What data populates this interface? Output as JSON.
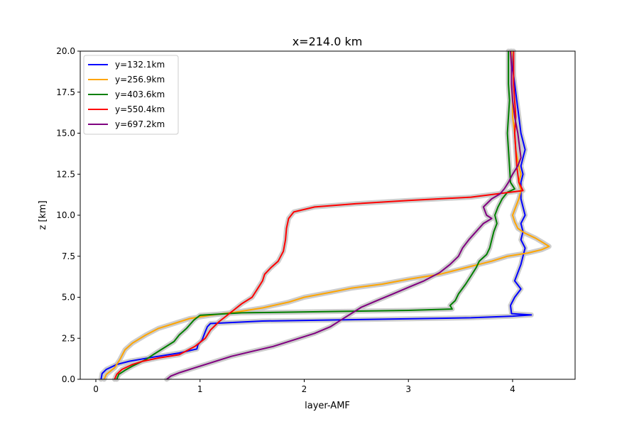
{
  "chart_data": {
    "type": "line",
    "title": "x=214.0 km",
    "xlabel": "layer-AMF",
    "ylabel": "z [km]",
    "xlim": [
      -0.15,
      4.6
    ],
    "ylim": [
      0,
      20
    ],
    "xticks": [
      0,
      1,
      2,
      3,
      4
    ],
    "yticks": [
      0.0,
      2.5,
      5.0,
      7.5,
      10.0,
      12.5,
      15.0,
      17.5,
      20.0
    ],
    "grid": false,
    "legend_position": "upper-left",
    "uncertainty_band_color": "#c8c8c8",
    "series": [
      {
        "name": "y=132.1km",
        "color": "#0000ff",
        "points": [
          [
            0.05,
            0
          ],
          [
            0.06,
            0.35
          ],
          [
            0.1,
            0.6
          ],
          [
            0.2,
            0.9
          ],
          [
            0.32,
            1.1
          ],
          [
            0.55,
            1.35
          ],
          [
            0.8,
            1.6
          ],
          [
            0.97,
            1.85
          ],
          [
            0.98,
            2.1
          ],
          [
            1.02,
            2.4
          ],
          [
            1.05,
            2.9
          ],
          [
            1.07,
            3.2
          ],
          [
            1.1,
            3.4
          ],
          [
            1.6,
            3.55
          ],
          [
            2.6,
            3.65
          ],
          [
            3.6,
            3.75
          ],
          [
            4.0,
            3.85
          ],
          [
            4.18,
            3.92
          ],
          [
            3.99,
            4.0
          ],
          [
            3.98,
            4.5
          ],
          [
            4.02,
            5.0
          ],
          [
            4.08,
            5.5
          ],
          [
            4.02,
            6.0
          ],
          [
            4.05,
            6.5
          ],
          [
            4.08,
            7.0
          ],
          [
            4.1,
            7.5
          ],
          [
            4.12,
            8.0
          ],
          [
            4.08,
            8.5
          ],
          [
            4.1,
            9.0
          ],
          [
            4.08,
            9.5
          ],
          [
            4.12,
            10.0
          ],
          [
            4.1,
            10.5
          ],
          [
            4.08,
            11.0
          ],
          [
            4.08,
            11.5
          ],
          [
            4.08,
            12.0
          ],
          [
            4.1,
            12.5
          ],
          [
            4.08,
            13.0
          ],
          [
            4.1,
            13.5
          ],
          [
            4.12,
            14.0
          ],
          [
            4.08,
            15.0
          ],
          [
            4.06,
            16.0
          ],
          [
            4.04,
            17.0
          ],
          [
            4.02,
            18.0
          ],
          [
            4.0,
            19.0
          ],
          [
            3.99,
            20.0
          ]
        ]
      },
      {
        "name": "y=256.9km",
        "color": "#ffa500",
        "points": [
          [
            0.08,
            0
          ],
          [
            0.1,
            0.3
          ],
          [
            0.18,
            0.7
          ],
          [
            0.23,
            1.2
          ],
          [
            0.28,
            1.8
          ],
          [
            0.35,
            2.2
          ],
          [
            0.48,
            2.7
          ],
          [
            0.6,
            3.1
          ],
          [
            0.75,
            3.4
          ],
          [
            0.9,
            3.7
          ],
          [
            1.1,
            3.9
          ],
          [
            1.35,
            4.1
          ],
          [
            1.6,
            4.35
          ],
          [
            1.85,
            4.7
          ],
          [
            2.0,
            5.0
          ],
          [
            2.25,
            5.3
          ],
          [
            2.45,
            5.55
          ],
          [
            2.75,
            5.8
          ],
          [
            3.0,
            6.1
          ],
          [
            3.3,
            6.4
          ],
          [
            3.55,
            6.8
          ],
          [
            3.8,
            7.2
          ],
          [
            3.95,
            7.5
          ],
          [
            4.15,
            7.7
          ],
          [
            4.28,
            7.9
          ],
          [
            4.35,
            8.1
          ],
          [
            4.3,
            8.3
          ],
          [
            4.22,
            8.6
          ],
          [
            4.12,
            8.9
          ],
          [
            4.05,
            9.2
          ],
          [
            4.02,
            9.6
          ],
          [
            4.0,
            10.0
          ],
          [
            4.03,
            10.5
          ],
          [
            4.06,
            11.0
          ],
          [
            4.08,
            11.5
          ],
          [
            4.06,
            12.0
          ],
          [
            4.08,
            12.5
          ],
          [
            4.06,
            13.0
          ],
          [
            4.03,
            14.0
          ],
          [
            4.02,
            15.0
          ],
          [
            4.0,
            16.0
          ],
          [
            4.0,
            17.0
          ],
          [
            3.99,
            18.0
          ],
          [
            3.99,
            19.0
          ],
          [
            3.99,
            20.0
          ]
        ]
      },
      {
        "name": "y=403.6km",
        "color": "#008000",
        "points": [
          [
            0.2,
            0
          ],
          [
            0.22,
            0.3
          ],
          [
            0.28,
            0.55
          ],
          [
            0.35,
            0.8
          ],
          [
            0.48,
            1.2
          ],
          [
            0.55,
            1.5
          ],
          [
            0.65,
            1.9
          ],
          [
            0.75,
            2.3
          ],
          [
            0.8,
            2.7
          ],
          [
            0.87,
            3.1
          ],
          [
            0.94,
            3.6
          ],
          [
            1.0,
            3.9
          ],
          [
            1.4,
            4.05
          ],
          [
            2.2,
            4.12
          ],
          [
            3.0,
            4.2
          ],
          [
            3.42,
            4.28
          ],
          [
            3.4,
            4.5
          ],
          [
            3.45,
            4.8
          ],
          [
            3.48,
            5.2
          ],
          [
            3.55,
            5.8
          ],
          [
            3.6,
            6.3
          ],
          [
            3.65,
            6.8
          ],
          [
            3.68,
            7.2
          ],
          [
            3.75,
            7.6
          ],
          [
            3.78,
            8.0
          ],
          [
            3.8,
            8.5
          ],
          [
            3.82,
            9.0
          ],
          [
            3.85,
            9.5
          ],
          [
            3.83,
            10.0
          ],
          [
            3.86,
            10.5
          ],
          [
            3.9,
            11.0
          ],
          [
            3.95,
            11.4
          ],
          [
            4.02,
            11.6
          ],
          [
            3.98,
            12.0
          ],
          [
            3.97,
            13.0
          ],
          [
            3.96,
            14.0
          ],
          [
            3.95,
            15.0
          ],
          [
            3.96,
            16.0
          ],
          [
            3.97,
            17.0
          ],
          [
            3.96,
            18.0
          ],
          [
            3.96,
            19.0
          ],
          [
            3.96,
            20.0
          ]
        ]
      },
      {
        "name": "y=550.4km",
        "color": "#ff0000",
        "points": [
          [
            0.18,
            0
          ],
          [
            0.2,
            0.3
          ],
          [
            0.25,
            0.6
          ],
          [
            0.35,
            0.9
          ],
          [
            0.45,
            1.1
          ],
          [
            0.6,
            1.3
          ],
          [
            0.8,
            1.5
          ],
          [
            0.95,
            2.0
          ],
          [
            1.05,
            2.5
          ],
          [
            1.1,
            3.0
          ],
          [
            1.18,
            3.5
          ],
          [
            1.25,
            3.85
          ],
          [
            1.32,
            4.2
          ],
          [
            1.4,
            4.6
          ],
          [
            1.5,
            5.0
          ],
          [
            1.55,
            5.5
          ],
          [
            1.6,
            6.0
          ],
          [
            1.62,
            6.4
          ],
          [
            1.68,
            6.8
          ],
          [
            1.75,
            7.2
          ],
          [
            1.8,
            7.8
          ],
          [
            1.82,
            8.5
          ],
          [
            1.83,
            9.2
          ],
          [
            1.85,
            9.8
          ],
          [
            1.9,
            10.2
          ],
          [
            2.1,
            10.5
          ],
          [
            2.5,
            10.7
          ],
          [
            3.0,
            10.9
          ],
          [
            3.6,
            11.1
          ],
          [
            4.1,
            11.5
          ],
          [
            4.06,
            12.0
          ],
          [
            4.04,
            13.0
          ],
          [
            4.03,
            14.0
          ],
          [
            4.02,
            15.0
          ],
          [
            4.03,
            16.0
          ],
          [
            4.02,
            17.0
          ],
          [
            4.01,
            18.0
          ],
          [
            4.01,
            19.0
          ],
          [
            4.01,
            20.0
          ]
        ]
      },
      {
        "name": "y=697.2km",
        "color": "#800080",
        "points": [
          [
            0.68,
            0
          ],
          [
            0.72,
            0.2
          ],
          [
            0.8,
            0.4
          ],
          [
            0.95,
            0.7
          ],
          [
            1.1,
            1.0
          ],
          [
            1.3,
            1.4
          ],
          [
            1.5,
            1.7
          ],
          [
            1.7,
            2.0
          ],
          [
            1.9,
            2.4
          ],
          [
            2.1,
            2.8
          ],
          [
            2.25,
            3.2
          ],
          [
            2.35,
            3.6
          ],
          [
            2.45,
            4.0
          ],
          [
            2.55,
            4.4
          ],
          [
            2.7,
            4.8
          ],
          [
            2.85,
            5.2
          ],
          [
            3.0,
            5.6
          ],
          [
            3.15,
            6.0
          ],
          [
            3.3,
            6.5
          ],
          [
            3.4,
            7.0
          ],
          [
            3.48,
            7.5
          ],
          [
            3.52,
            8.0
          ],
          [
            3.58,
            8.5
          ],
          [
            3.65,
            9.0
          ],
          [
            3.72,
            9.5
          ],
          [
            3.8,
            9.8
          ],
          [
            3.75,
            10.0
          ],
          [
            3.72,
            10.5
          ],
          [
            3.8,
            11.0
          ],
          [
            3.88,
            11.3
          ],
          [
            3.92,
            11.6
          ],
          [
            3.96,
            12.0
          ],
          [
            4.0,
            12.5
          ],
          [
            4.05,
            13.0
          ],
          [
            4.08,
            13.5
          ],
          [
            4.07,
            14.0
          ],
          [
            4.05,
            15.0
          ],
          [
            4.02,
            16.0
          ],
          [
            4.0,
            17.0
          ],
          [
            3.99,
            18.0
          ],
          [
            3.99,
            19.0
          ],
          [
            3.98,
            20.0
          ]
        ]
      }
    ]
  }
}
